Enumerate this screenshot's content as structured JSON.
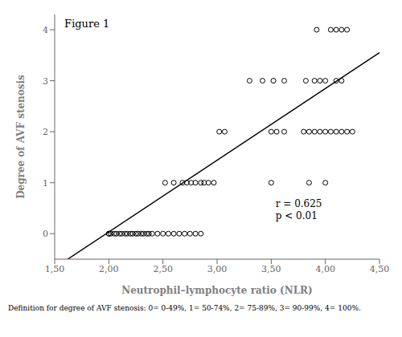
{
  "chart_data": {
    "type": "scatter",
    "title": "Figure 1",
    "x_label": "Neutrophil–lymphocyte ratio (NLR)",
    "y_label": "Degree of AVF stenosis",
    "xlim": [
      1.5,
      4.5
    ],
    "ylim": [
      -0.5,
      4.3
    ],
    "xticks": [
      {
        "value": 1.5,
        "label": "1,50"
      },
      {
        "value": 2.0,
        "label": "2,00"
      },
      {
        "value": 2.5,
        "label": "2,50"
      },
      {
        "value": 3.0,
        "label": "3,00"
      },
      {
        "value": 3.5,
        "label": "3,50"
      },
      {
        "value": 4.0,
        "label": "4,00"
      },
      {
        "value": 4.5,
        "label": "4,50"
      }
    ],
    "yticks": [
      0,
      1,
      2,
      3,
      4
    ],
    "annotation": "r = 0.625\np < 0.01",
    "caption": "Definition for degree of AVF stenosis: 0= 0-49%, 1= 50-74%, 2= 75-89%, 3= 90-99%, 4= 100%.",
    "grid": false,
    "series": [
      {
        "type": "scatter",
        "marker": "open_circle",
        "color": "#000000",
        "x": [
          2.0,
          2.0,
          2.02,
          2.05,
          2.07,
          2.1,
          2.12,
          2.15,
          2.17,
          2.2,
          2.22,
          2.25,
          2.27,
          2.3,
          2.32,
          2.35,
          2.37,
          2.4,
          2.45,
          2.5,
          2.55,
          2.6,
          2.65,
          2.7,
          2.75,
          2.8,
          2.85,
          2.52,
          2.6,
          2.68,
          2.72,
          2.76,
          2.8,
          2.85,
          2.88,
          2.92,
          2.97,
          3.5,
          3.85,
          4.0,
          3.02,
          3.07,
          3.5,
          3.55,
          3.62,
          3.8,
          3.85,
          3.9,
          3.95,
          4.0,
          4.05,
          4.1,
          4.15,
          4.2,
          4.25,
          3.3,
          3.42,
          3.52,
          3.62,
          3.82,
          3.9,
          3.95,
          4.0,
          4.1,
          4.15,
          3.92,
          4.05,
          4.1,
          4.15,
          4.2
        ],
        "values": [
          0,
          0,
          0,
          0,
          0,
          0,
          0,
          0,
          0,
          0,
          0,
          0,
          0,
          0,
          0,
          0,
          0,
          0,
          0,
          0,
          0,
          0,
          0,
          0,
          0,
          0,
          0,
          1,
          1,
          1,
          1,
          1,
          1,
          1,
          1,
          1,
          1,
          1,
          1,
          1,
          2,
          2,
          2,
          2,
          2,
          2,
          2,
          2,
          2,
          2,
          2,
          2,
          2,
          2,
          2,
          3,
          3,
          3,
          3,
          3,
          3,
          3,
          3,
          3,
          3,
          4,
          4,
          4,
          4,
          4
        ]
      },
      {
        "type": "line",
        "line_style": "solid",
        "color": "#000000",
        "x": [
          1.62,
          4.5
        ],
        "values": [
          -0.5,
          3.55
        ]
      }
    ]
  }
}
